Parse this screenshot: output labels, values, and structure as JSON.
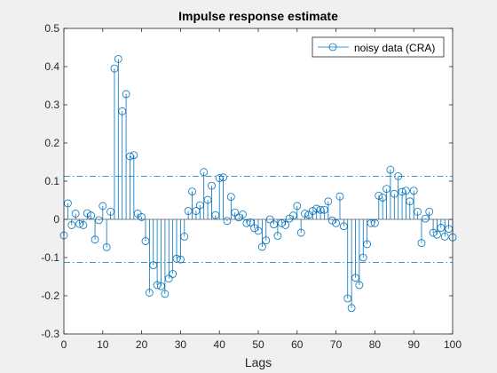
{
  "chart_data": {
    "type": "stem",
    "title": "Impulse response estimate",
    "xlabel": "Lags",
    "ylabel": "",
    "xlim": [
      0,
      100
    ],
    "ylim": [
      -0.3,
      0.5
    ],
    "x_ticks": [
      0,
      10,
      20,
      30,
      40,
      50,
      60,
      70,
      80,
      90,
      100
    ],
    "y_ticks": [
      -0.3,
      -0.2,
      -0.1,
      0,
      0.1,
      0.2,
      0.3,
      0.4,
      0.5
    ],
    "y_tick_labels": [
      "-0.3",
      "-0.2",
      "-0.1",
      "0",
      "0.1",
      "0.2",
      "0.3",
      "0.4",
      "0.5"
    ],
    "grid": false,
    "legend_position": "top-right",
    "confidence_bounds": [
      0.113,
      -0.113
    ],
    "series": [
      {
        "name": "noisy data (CRA)",
        "color": "#0072bd",
        "x": [
          0,
          1,
          2,
          3,
          4,
          5,
          6,
          7,
          8,
          9,
          10,
          11,
          12,
          13,
          14,
          15,
          16,
          17,
          18,
          19,
          20,
          21,
          22,
          23,
          24,
          25,
          26,
          27,
          28,
          29,
          30,
          31,
          32,
          33,
          34,
          35,
          36,
          37,
          38,
          39,
          40,
          41,
          42,
          43,
          44,
          45,
          46,
          47,
          48,
          49,
          50,
          51,
          52,
          53,
          54,
          55,
          56,
          57,
          58,
          59,
          60,
          61,
          62,
          63,
          64,
          65,
          66,
          67,
          68,
          69,
          70,
          71,
          72,
          73,
          74,
          75,
          76,
          77,
          78,
          79,
          80,
          81,
          82,
          83,
          84,
          85,
          86,
          87,
          88,
          89,
          90,
          91,
          92,
          93,
          94,
          95,
          96,
          97,
          98,
          99,
          100
        ],
        "values": [
          -0.042,
          0.042,
          -0.015,
          0.015,
          -0.012,
          -0.015,
          0.016,
          0.01,
          -0.053,
          -0.002,
          0.035,
          -0.073,
          0.02,
          0.395,
          0.42,
          0.283,
          0.328,
          0.165,
          0.168,
          0.015,
          0.006,
          -0.057,
          -0.192,
          -0.12,
          -0.172,
          -0.175,
          -0.195,
          -0.155,
          -0.143,
          -0.103,
          -0.105,
          -0.045,
          0.022,
          0.073,
          0.022,
          0.037,
          0.124,
          0.051,
          0.088,
          0.011,
          0.108,
          0.11,
          -0.004,
          0.059,
          0.018,
          0.005,
          0.013,
          -0.01,
          -0.008,
          -0.023,
          -0.03,
          -0.072,
          -0.055,
          0.0,
          -0.013,
          -0.043,
          -0.01,
          -0.015,
          0.002,
          0.01,
          0.035,
          -0.035,
          0.015,
          0.012,
          0.022,
          0.028,
          0.025,
          0.025,
          0.047,
          -0.003,
          -0.01,
          0.06,
          -0.018,
          -0.207,
          -0.232,
          -0.153,
          -0.172,
          -0.1,
          -0.065,
          -0.01,
          -0.01,
          0.062,
          0.057,
          0.08,
          0.13,
          0.067,
          0.113,
          0.072,
          0.075,
          0.047,
          0.075,
          0.02,
          -0.062,
          0.002,
          0.02,
          -0.035,
          -0.04,
          -0.022,
          -0.045,
          -0.025,
          -0.047
        ]
      }
    ]
  }
}
